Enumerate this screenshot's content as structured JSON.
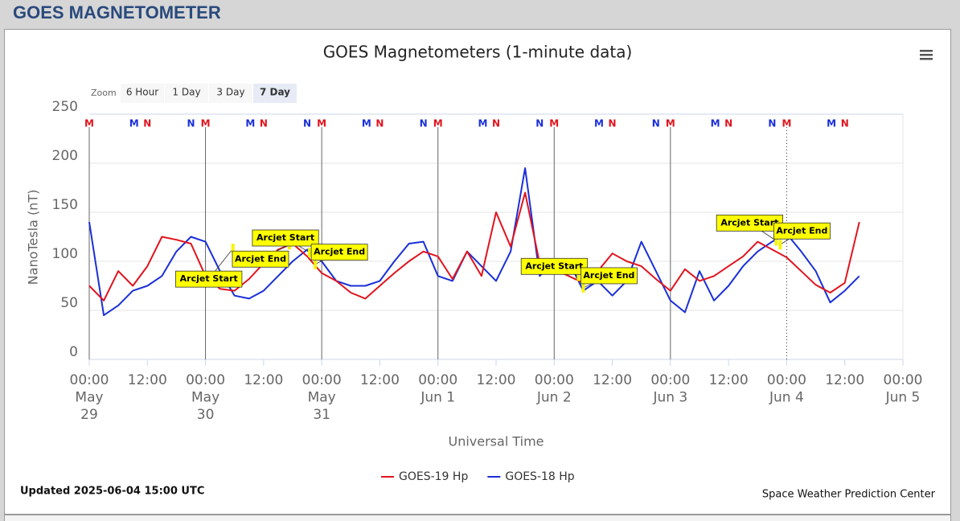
{
  "header": {
    "title": "GOES MAGNETOMETER"
  },
  "chart_data": {
    "type": "line",
    "title": "GOES Magnetometers (1-minute data)",
    "y_label": "NanoTesla (nT)",
    "x_label": "Universal Time",
    "zoom": {
      "label": "Zoom",
      "buttons": [
        "6 Hour",
        "1 Day",
        "3 Day",
        "7 Day"
      ],
      "selected": 3
    },
    "xlim": [
      "May 29 00:00",
      "Jun 5 00:00"
    ],
    "ylim": [
      0,
      250
    ],
    "yticks": [
      0,
      50,
      100,
      150,
      200,
      250
    ],
    "grid": true,
    "xticks": [
      {
        "value": "May 29 00:00",
        "label": [
          "00:00",
          "May",
          "29"
        ]
      },
      {
        "value": "May 29 12:00",
        "label": [
          "12:00"
        ]
      },
      {
        "value": "May 30 00:00",
        "label": [
          "00:00",
          "May",
          "30"
        ]
      },
      {
        "value": "May 30 12:00",
        "label": [
          "12:00"
        ]
      },
      {
        "value": "May 31 00:00",
        "label": [
          "00:00",
          "May",
          "31"
        ]
      },
      {
        "value": "May 31 12:00",
        "label": [
          "12:00"
        ]
      },
      {
        "value": "Jun 1 00:00",
        "label": [
          "00:00",
          "Jun 1"
        ]
      },
      {
        "value": "Jun 1 12:00",
        "label": [
          "12:00"
        ]
      },
      {
        "value": "Jun 2 00:00",
        "label": [
          "00:00",
          "Jun 2"
        ]
      },
      {
        "value": "Jun 2 12:00",
        "label": [
          "12:00"
        ]
      },
      {
        "value": "Jun 3 00:00",
        "label": [
          "00:00",
          "Jun 3"
        ]
      },
      {
        "value": "Jun 3 12:00",
        "label": [
          "12:00"
        ]
      },
      {
        "value": "Jun 4 00:00",
        "label": [
          "00:00",
          "Jun 4"
        ]
      },
      {
        "value": "Jun 4 12:00",
        "label": [
          "12:00"
        ]
      },
      {
        "value": "Jun 5 00:00",
        "label": [
          "00:00",
          "Jun 5"
        ]
      }
    ],
    "plot_lines": [
      {
        "x": "May 30 00:00",
        "dotted": false
      },
      {
        "x": "May 31 00:00",
        "dotted": false
      },
      {
        "x": "Jun 1 00:00",
        "dotted": false
      },
      {
        "x": "Jun 2 00:00",
        "dotted": false
      },
      {
        "x": "Jun 3 00:00",
        "dotted": false
      },
      {
        "x": "Jun 4 00:00",
        "dotted": true
      }
    ],
    "markers": [
      {
        "text": "M",
        "color": "#e0141e",
        "x": [
          "May 29 00:00",
          "May 30 00:00",
          "May 31 00:00",
          "Jun 1 00:00",
          "Jun 2 00:00",
          "Jun 3 00:00",
          "Jun 4 00:00"
        ]
      },
      {
        "text": "N",
        "color": "#e0141e",
        "x": [
          "May 29 12:00",
          "May 30 12:00",
          "May 31 12:00",
          "Jun 1 12:00",
          "Jun 2 12:00",
          "Jun 3 12:00",
          "Jun 4 12:00"
        ]
      },
      {
        "text": "M",
        "color": "#1a2fd8",
        "x": [
          "May 29 09:15",
          "May 30 09:15",
          "May 31 09:15",
          "Jun 1 09:15",
          "Jun 2 09:15",
          "Jun 3 09:15",
          "Jun 4 09:15"
        ]
      },
      {
        "text": "N",
        "color": "#1a2fd8",
        "x": [
          "May 29 21:00",
          "May 30 21:00",
          "May 31 21:00",
          "Jun 1 21:00",
          "Jun 2 21:00",
          "Jun 3 21:00"
        ]
      }
    ],
    "annotations": [
      {
        "text": "Arcjet Start",
        "x": "May 30 05:40",
        "y": 113
      },
      {
        "text": "Arcjet End",
        "x": "May 30 17:20",
        "y": 117
      },
      {
        "text": "Arcjet Start",
        "x": "May 30 21:30",
        "y": 109
      },
      {
        "text": "Arcjet End",
        "x": "May 30 22:40",
        "y": 97
      },
      {
        "text": "Arcjet Start",
        "x": "Jun 2 05:00",
        "y": 85
      },
      {
        "text": "Arcjet End",
        "x": "Jun 2 06:00",
        "y": 73
      },
      {
        "text": "Arcjet Start",
        "x": "Jun 3 21:50",
        "y": 121
      },
      {
        "text": "Arcjet End",
        "x": "Jun 3 22:40",
        "y": 117
      }
    ],
    "x": [
      "May 29 00:00",
      "May 29 03:00",
      "May 29 06:00",
      "May 29 09:00",
      "May 29 12:00",
      "May 29 15:00",
      "May 29 18:00",
      "May 29 21:00",
      "May 30 00:00",
      "May 30 03:00",
      "May 30 06:00",
      "May 30 09:00",
      "May 30 12:00",
      "May 30 15:00",
      "May 30 18:00",
      "May 30 21:00",
      "May 31 00:00",
      "May 31 03:00",
      "May 31 06:00",
      "May 31 09:00",
      "May 31 12:00",
      "May 31 15:00",
      "May 31 18:00",
      "May 31 21:00",
      "Jun 1 00:00",
      "Jun 1 03:00",
      "Jun 1 06:00",
      "Jun 1 09:00",
      "Jun 1 12:00",
      "Jun 1 15:00",
      "Jun 1 18:00",
      "Jun 1 21:00",
      "Jun 2 00:00",
      "Jun 2 03:00",
      "Jun 2 06:00",
      "Jun 2 09:00",
      "Jun 2 12:00",
      "Jun 2 15:00",
      "Jun 2 18:00",
      "Jun 2 21:00",
      "Jun 3 00:00",
      "Jun 3 03:00",
      "Jun 3 06:00",
      "Jun 3 09:00",
      "Jun 3 12:00",
      "Jun 3 15:00",
      "Jun 3 18:00",
      "Jun 3 21:00",
      "Jun 4 00:00",
      "Jun 4 03:00",
      "Jun 4 06:00",
      "Jun 4 09:00",
      "Jun 4 12:00",
      "Jun 4 15:00"
    ],
    "series": [
      {
        "name": "GOES-19 Hp",
        "color": "#e0141e",
        "values": [
          75,
          60,
          90,
          75,
          95,
          125,
          122,
          118,
          85,
          72,
          70,
          82,
          98,
          112,
          118,
          105,
          88,
          80,
          68,
          62,
          75,
          88,
          100,
          110,
          105,
          82,
          110,
          85,
          150,
          115,
          170,
          98,
          92,
          85,
          78,
          90,
          108,
          100,
          95,
          82,
          70,
          92,
          80,
          85,
          95,
          105,
          120,
          112,
          104,
          90,
          76,
          68,
          78,
          140
        ]
      },
      {
        "name": "GOES-18 Hp",
        "color": "#1a2fd8",
        "values": [
          140,
          45,
          55,
          70,
          75,
          85,
          110,
          125,
          120,
          90,
          65,
          62,
          70,
          85,
          100,
          112,
          100,
          80,
          75,
          75,
          80,
          100,
          118,
          120,
          85,
          80,
          110,
          95,
          80,
          110,
          195,
          85,
          100,
          100,
          70,
          80,
          65,
          80,
          120,
          90,
          60,
          48,
          90,
          60,
          75,
          95,
          110,
          120,
          128,
          110,
          90,
          58,
          70,
          85
        ]
      }
    ],
    "updated": "Updated 2025-06-04 15:00 UTC",
    "credits": "Space Weather Prediction Center"
  }
}
